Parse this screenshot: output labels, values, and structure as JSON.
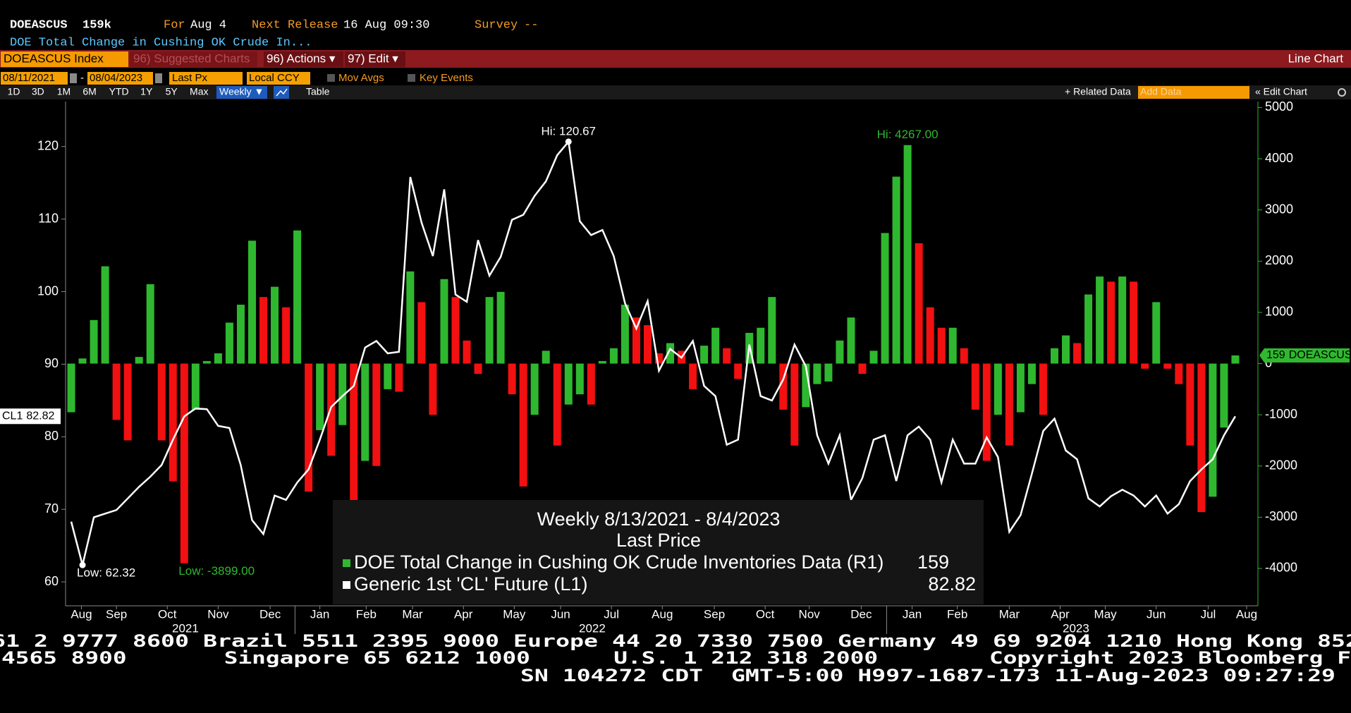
{
  "header": {
    "ticker": "DOEASCUS",
    "last": "159k",
    "for_label": "For",
    "for_value": "Aug 4",
    "next_label": "Next Release",
    "next_value": "16 Aug 09:30",
    "survey_label": "Survey",
    "survey_value": "--",
    "description": "DOE Total Change in Cushing OK Crude In..."
  },
  "toolbar": {
    "security": "DOEASCUS Index",
    "suggested": "96) Suggested Charts",
    "actions": "96) Actions ▾",
    "edit": "97) Edit ▾",
    "chart_type": "Line Chart"
  },
  "controls": {
    "start": "08/11/2021",
    "end": "08/04/2023",
    "dash": "-",
    "field": "Last Px",
    "currency": "Local CCY",
    "mov_avgs": "Mov Avgs",
    "key_events": "Key Events",
    "periods": [
      "1D",
      "3D",
      "1M",
      "6M",
      "YTD",
      "1Y",
      "5Y",
      "Max"
    ],
    "frequency": "Weekly ▼",
    "table": "Table",
    "related": "+ Related Data",
    "add_data": "Add Data",
    "edit_chart": "« Edit Chart"
  },
  "chart_data": {
    "type": "bar_line",
    "legend": {
      "title": "Weekly 8/13/2021 - 8/4/2023",
      "subtitle": "Last Price"
    },
    "series": [
      {
        "name": "DOE Total Change in Cushing OK Crude Inventories Data  (R1)",
        "type": "bar",
        "axis": "y2",
        "color": "#2fb82f",
        "down_color": "#f21010",
        "tag_label": "DOEASCUS",
        "hi_label": "Hi: 4267.00",
        "low_label": "Low: -3899.00",
        "values": [
          -950,
          100,
          850,
          1900,
          -1100,
          -1500,
          130,
          1550,
          -1500,
          -2300,
          -3899,
          -900,
          50,
          200,
          800,
          1150,
          2400,
          1300,
          1500,
          1100,
          2600,
          -2500,
          -1300,
          -1800,
          -1200,
          -2800,
          -1900,
          -2000,
          -500,
          -550,
          1800,
          1200,
          -1000,
          1650,
          1300,
          450,
          -200,
          1300,
          1400,
          -600,
          -2400,
          -1000,
          250,
          -1600,
          -800,
          -600,
          -800,
          50,
          300,
          1150,
          900,
          750,
          200,
          400,
          250,
          -500,
          350,
          700,
          300,
          -300,
          600,
          700,
          1300,
          -900,
          -1600,
          -850,
          -400,
          -350,
          450,
          900,
          -200,
          250,
          2550,
          3650,
          4267,
          2350,
          1100,
          700,
          700,
          300,
          -900,
          -1900,
          -1000,
          -1600,
          -950,
          -400,
          -1000,
          300,
          550,
          400,
          1350,
          1700,
          1600,
          1700,
          1600,
          -100,
          1200,
          -100,
          -400,
          -1600,
          -2900,
          -2600,
          -1250,
          159
        ]
      },
      {
        "name": "Generic 1st 'CL' Future  (L1)",
        "type": "line",
        "axis": "y",
        "color": "#ffffff",
        "tag_label": "CL1",
        "hi_label": "Hi: 120.67",
        "low_label": "Low: 62.32",
        "values": [
          68.3,
          62.32,
          68.9,
          69.4,
          69.9,
          71.5,
          73.1,
          74.5,
          76.1,
          79.6,
          82.8,
          83.9,
          83.8,
          81.5,
          81.2,
          76.1,
          68.5,
          66.6,
          71.9,
          71.3,
          73.7,
          75.5,
          79.6,
          84.1,
          85.6,
          87.0,
          92.3,
          93.2,
          91.5,
          91.7,
          115.8,
          109.5,
          104.9,
          114.1,
          99.6,
          98.6,
          107.1,
          102.2,
          104.8,
          109.9,
          110.6,
          113.2,
          115.2,
          118.8,
          120.67,
          109.7,
          107.8,
          108.5,
          104.9,
          98.4,
          94.9,
          98.7,
          89.1,
          92.1,
          90.9,
          93.2,
          87.0,
          85.6,
          78.9,
          79.6,
          92.7,
          85.6,
          85.0,
          87.9,
          92.7,
          89.7,
          80.2,
          76.3,
          80.2,
          71.3,
          74.3,
          79.6,
          80.2,
          73.9,
          80.2,
          81.4,
          79.6,
          73.7,
          79.6,
          76.3,
          76.3,
          79.9,
          77.2,
          66.9,
          69.2,
          74.9,
          80.8,
          82.5,
          78.1,
          76.9,
          71.5,
          70.4,
          71.8,
          72.7,
          71.9,
          70.4,
          71.9,
          69.4,
          70.7,
          73.9,
          75.5,
          76.9,
          80.2,
          82.82
        ]
      }
    ],
    "xlim": [
      -0.5,
      105
    ],
    "xticks": [
      {
        "value": 0.9,
        "label": "Aug"
      },
      {
        "value": 4,
        "label": "Sep"
      },
      {
        "value": 8.5,
        "label": "Oct"
      },
      {
        "value": 13,
        "label": "Nov"
      },
      {
        "value": 17.6,
        "label": "Dec"
      },
      {
        "value": 22,
        "label": "Jan"
      },
      {
        "value": 26.1,
        "label": "Feb"
      },
      {
        "value": 30.2,
        "label": "Mar"
      },
      {
        "value": 34.7,
        "label": "Apr"
      },
      {
        "value": 39.2,
        "label": "May"
      },
      {
        "value": 43.3,
        "label": "Jun"
      },
      {
        "value": 47.8,
        "label": "Jul"
      },
      {
        "value": 52.3,
        "label": "Aug"
      },
      {
        "value": 56.9,
        "label": "Sep"
      },
      {
        "value": 61.4,
        "label": "Oct"
      },
      {
        "value": 65.3,
        "label": "Nov"
      },
      {
        "value": 69.9,
        "label": "Dec"
      },
      {
        "value": 74.4,
        "label": "Jan"
      },
      {
        "value": 78.4,
        "label": "Feb"
      },
      {
        "value": 83,
        "label": "Mar"
      },
      {
        "value": 87.5,
        "label": "Apr"
      },
      {
        "value": 91.5,
        "label": "May"
      },
      {
        "value": 96,
        "label": "Jun"
      },
      {
        "value": 100.6,
        "label": "Jul"
      },
      {
        "value": 104,
        "label": "Aug"
      }
    ],
    "year_labels": [
      {
        "value": 10.1,
        "label": "2021"
      },
      {
        "value": 46.1,
        "label": "2022"
      },
      {
        "value": 88.9,
        "label": "2023"
      }
    ],
    "ylim": [
      56.7,
      126.2
    ],
    "yticks": [
      60,
      70,
      80,
      90,
      100,
      110,
      120
    ],
    "y2lim": [
      -4730,
      5117
    ],
    "y2ticks": [
      -4000,
      -3000,
      -2000,
      -1000,
      0,
      1000,
      2000,
      3000,
      4000,
      5000
    ]
  },
  "footer": [
    "61 2 9777 8600 Brazil 5511 2395 9000 Europe 44 20 7330 7500 Germany 49 69 9204 1210 Hong Kong 852",
    "4565 8900       Singapore 65 6212 1000      U.S. 1 212 318 2000        Copyright 2023 Bloomberg F",
    "SN 104272 CDT  GMT-5:00 H997-1687-173 11-Aug-2023 09:27:29"
  ]
}
